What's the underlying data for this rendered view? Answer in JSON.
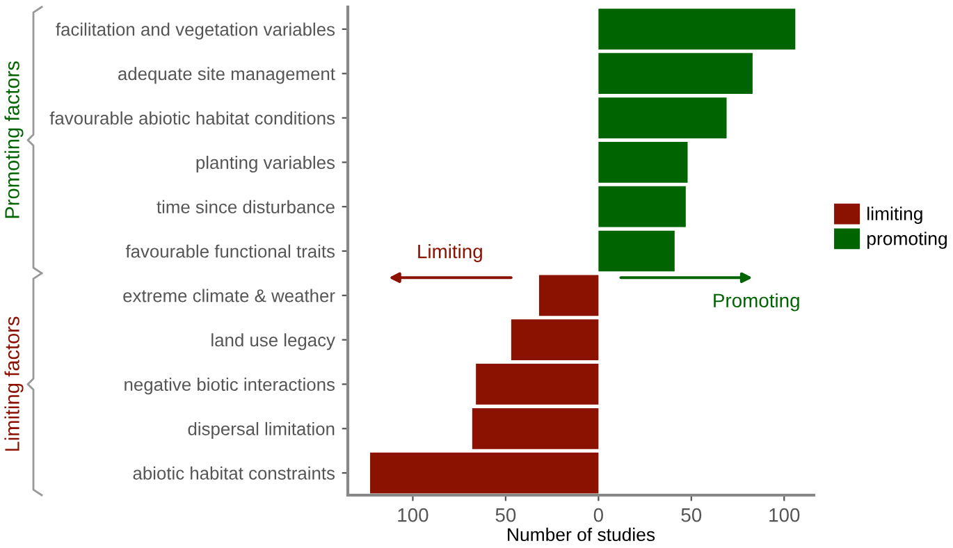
{
  "chart_data": {
    "type": "bar",
    "orientation": "horizontal",
    "xlabel": "Number of studies",
    "categories": [
      "facilitation and vegetation variables",
      "adequate site management",
      "favourable abiotic habitat conditions",
      "planting variables",
      "time since disturbance",
      "favourable functional traits",
      "extreme climate & weather",
      "land use legacy",
      "negative biotic interactions",
      "dispersal limitation",
      "abiotic habitat constraints"
    ],
    "series": [
      {
        "name": "limiting",
        "color": "#8b1200",
        "values": [
          null,
          null,
          null,
          null,
          null,
          null,
          -32,
          -47,
          -66,
          -68,
          -123
        ]
      },
      {
        "name": "promoting",
        "color": "#006400",
        "values": [
          106,
          83,
          69,
          48,
          47,
          41,
          null,
          null,
          null,
          null,
          null
        ]
      }
    ],
    "xlim": [
      -135,
      116
    ],
    "xticks": [
      {
        "value": -100,
        "label": "100"
      },
      {
        "value": -50,
        "label": "50"
      },
      0,
      50,
      100
    ],
    "annotations": [
      "Limiting",
      "Promoting",
      "Promoting factors",
      "Limiting factors"
    ],
    "legend": "right",
    "grid": false
  }
}
